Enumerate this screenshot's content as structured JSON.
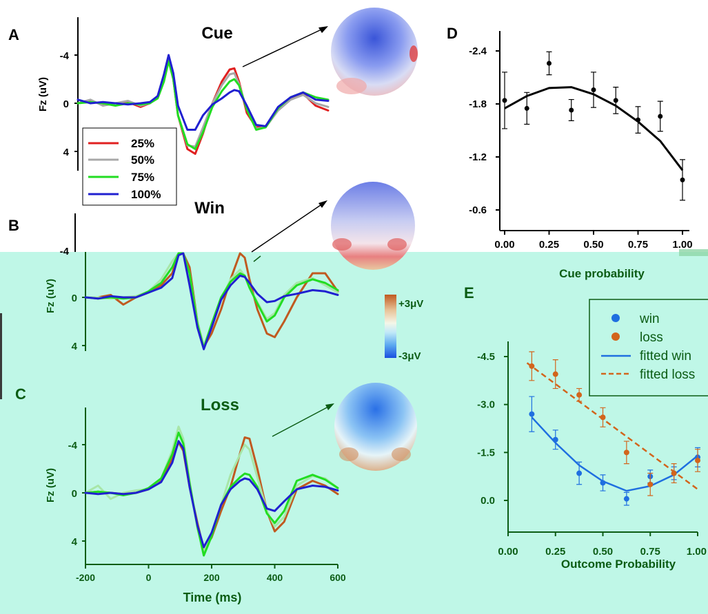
{
  "panels": {
    "A": {
      "letter": "A",
      "title": "Cue",
      "ylabel": "Fz (uV)",
      "yticks": [
        "-4",
        "0",
        "4"
      ]
    },
    "B": {
      "letter": "B",
      "title": "Win",
      "ylabel": "Fz (uV)",
      "yticks": [
        "-4",
        "0",
        "4"
      ]
    },
    "C": {
      "letter": "C",
      "title": "Loss",
      "ylabel": "Fz (uV)",
      "yticks": [
        "-4",
        "0",
        "4"
      ],
      "xticks": [
        "-200",
        "0",
        "200",
        "400",
        "600"
      ],
      "xlabel": "Time (ms)"
    },
    "D": {
      "letter": "D",
      "xlabel": "Cue probability",
      "yticks": [
        "-2.4",
        "-1.8",
        "-1.2",
        "-0.6"
      ],
      "xticks": [
        "0.00",
        "0.25",
        "0.50",
        "0.75",
        "1.00"
      ]
    },
    "E": {
      "letter": "E",
      "xlabel": "Outcome Probability",
      "yticks": [
        "-4.5",
        "-3.0",
        "-1.5",
        "0.0"
      ],
      "xticks": [
        "0.00",
        "0.25",
        "0.50",
        "0.75",
        "1.00"
      ]
    }
  },
  "legend_abc": [
    "25%",
    "50%",
    "75%",
    "100%"
  ],
  "legend_e": [
    "win",
    "loss",
    "fitted win",
    "fitted loss"
  ],
  "colorbar": {
    "top": "+3μV",
    "bottom": "-3μV"
  },
  "colors": {
    "red": "#e02020",
    "gray": "#a8a8a8",
    "green": "#22dd22",
    "blue": "#2020d0",
    "brown": "#c05a20",
    "lightgreen": "#a8e6a8",
    "bg_bottom": "#bff7e7",
    "dark_green": "#0b5c14",
    "win": "#1f6fe0",
    "loss": "#d2651c"
  },
  "chart_data": [
    {
      "type": "line",
      "panel": "A",
      "title": "Cue",
      "ylabel": "Fz (uV)",
      "xlabel": "",
      "ylim": [
        5.5,
        -6.5
      ],
      "xlim": [
        -200,
        600
      ],
      "series": [
        {
          "name": "25%",
          "color": "#e02020",
          "x": [
            -200,
            -160,
            -120,
            -80,
            -40,
            0,
            30,
            55,
            75,
            90,
            105,
            120,
            150,
            175,
            200,
            230,
            260,
            285,
            300,
            315,
            340,
            370,
            400,
            440,
            480,
            520,
            560,
            600
          ],
          "y": [
            0,
            -0.2,
            0.1,
            0,
            -0.1,
            0.3,
            0,
            -0.5,
            -2,
            -3.8,
            -2,
            1,
            3.8,
            4.2,
            2.5,
            0,
            -1.8,
            -2.8,
            -2.9,
            -1.8,
            0.8,
            2,
            1.9,
            0.5,
            -0.4,
            -0.8,
            0.2,
            0.6
          ]
        },
        {
          "name": "50%",
          "color": "#a8a8a8",
          "x": [
            -200,
            -160,
            -120,
            -80,
            -40,
            0,
            30,
            55,
            75,
            90,
            105,
            120,
            150,
            175,
            200,
            230,
            260,
            285,
            300,
            315,
            340,
            370,
            400,
            440,
            480,
            520,
            560,
            600
          ],
          "y": [
            0,
            -0.3,
            0.2,
            0,
            -0.2,
            0.2,
            0,
            -0.6,
            -2.2,
            -3.6,
            -2,
            1,
            3.5,
            3.6,
            2,
            0,
            -1.5,
            -2.4,
            -2.5,
            -1.6,
            0.5,
            2.1,
            2,
            0.6,
            -0.3,
            -0.7,
            0,
            0.3
          ]
        },
        {
          "name": "75%",
          "color": "#22dd22",
          "x": [
            -200,
            -160,
            -120,
            -80,
            -40,
            0,
            30,
            55,
            75,
            90,
            105,
            120,
            150,
            175,
            200,
            230,
            260,
            285,
            300,
            315,
            340,
            370,
            400,
            440,
            480,
            520,
            560,
            600
          ],
          "y": [
            0,
            -0.1,
            0,
            0.2,
            0,
            0.1,
            0,
            -0.4,
            -1.8,
            -3.5,
            -2,
            1,
            3.4,
            3.8,
            2.4,
            0.3,
            -1,
            -1.8,
            -2,
            -1.5,
            0.5,
            2.2,
            2,
            0.4,
            -0.5,
            -0.9,
            -0.5,
            -0.3
          ]
        },
        {
          "name": "100%",
          "color": "#2020d0",
          "x": [
            -200,
            -160,
            -120,
            -80,
            -40,
            0,
            30,
            55,
            75,
            90,
            105,
            120,
            150,
            175,
            200,
            230,
            260,
            285,
            300,
            315,
            340,
            370,
            400,
            440,
            480,
            520,
            560,
            600
          ],
          "y": [
            -0.3,
            0,
            -0.1,
            0,
            0.1,
            0,
            -0.1,
            -0.6,
            -2.4,
            -4,
            -2.5,
            0.2,
            2.2,
            2.2,
            1,
            0.1,
            -0.4,
            -0.9,
            -1.1,
            -1,
            0.2,
            1.8,
            1.9,
            0.3,
            -0.5,
            -0.9,
            -0.3,
            -0.2
          ]
        }
      ]
    },
    {
      "type": "line",
      "panel": "B",
      "title": "Win",
      "ylabel": "Fz (uV)",
      "xlabel": "",
      "ylim": [
        5.5,
        -6.5
      ],
      "xlim": [
        -200,
        600
      ],
      "series": [
        {
          "name": "brown",
          "color": "#c05a20",
          "x": [
            -200,
            -160,
            -120,
            -80,
            -40,
            0,
            40,
            75,
            95,
            110,
            130,
            155,
            175,
            200,
            230,
            260,
            290,
            305,
            320,
            345,
            375,
            400,
            430,
            470,
            520,
            560,
            600
          ],
          "y": [
            0,
            0,
            -0.2,
            0.6,
            0,
            -0.4,
            -1,
            -2,
            -4.5,
            -6,
            -2.5,
            2,
            4.1,
            3,
            1,
            -1.5,
            -3.7,
            -3.3,
            -1.5,
            1,
            3,
            3.3,
            2,
            0,
            -2,
            -2,
            -0.5
          ]
        },
        {
          "name": "lightgreen",
          "color": "#a8e6a8",
          "x": [
            -200,
            -160,
            -120,
            -80,
            -40,
            0,
            40,
            75,
            95,
            110,
            130,
            155,
            175,
            200,
            230,
            260,
            290,
            305,
            320,
            345,
            375,
            400,
            430,
            470,
            520,
            560,
            600
          ],
          "y": [
            0,
            0,
            0.1,
            0,
            -0.1,
            -0.5,
            -1.5,
            -3,
            -6,
            -5.8,
            -2,
            2,
            4,
            2.3,
            0.2,
            -1.5,
            -2.3,
            -1.8,
            -0.8,
            0.4,
            1.8,
            1.3,
            -0.2,
            -1.2,
            -1.6,
            -1,
            -0.4
          ]
        },
        {
          "name": "green",
          "color": "#22dd22",
          "x": [
            -200,
            -160,
            -120,
            -80,
            -40,
            0,
            40,
            75,
            95,
            110,
            130,
            155,
            175,
            200,
            230,
            260,
            290,
            305,
            320,
            345,
            375,
            400,
            430,
            470,
            520,
            560,
            600
          ],
          "y": [
            0,
            0.1,
            0,
            0.1,
            0,
            -0.5,
            -1.2,
            -2.5,
            -5,
            -5.5,
            -2,
            2.2,
            4.2,
            2.2,
            0,
            -1.3,
            -2,
            -1.8,
            -0.8,
            0.5,
            2,
            1.5,
            0,
            -1,
            -1.5,
            -1.2,
            -0.6
          ]
        },
        {
          "name": "blue",
          "color": "#2020d0",
          "x": [
            -200,
            -160,
            -120,
            -80,
            -40,
            0,
            40,
            75,
            95,
            110,
            130,
            155,
            175,
            200,
            230,
            260,
            290,
            305,
            320,
            345,
            375,
            400,
            430,
            470,
            520,
            560,
            600
          ],
          "y": [
            0,
            0.1,
            -0.1,
            0,
            0,
            -0.4,
            -0.8,
            -1.6,
            -3.5,
            -3.8,
            -1,
            2.5,
            4.3,
            2.5,
            0.2,
            -1,
            -1.8,
            -1.7,
            -1.2,
            -0.3,
            0.4,
            0.3,
            -0.1,
            -0.3,
            -0.6,
            -0.5,
            -0.2
          ]
        }
      ]
    },
    {
      "type": "line",
      "panel": "C",
      "title": "Loss",
      "ylabel": "Fz (uV)",
      "xlabel": "Time (ms)",
      "ylim": [
        5.5,
        -6.5
      ],
      "xlim": [
        -200,
        600
      ],
      "series": [
        {
          "name": "brown",
          "color": "#c05a20",
          "x": [
            -200,
            -160,
            -120,
            -80,
            -40,
            0,
            40,
            75,
            95,
            110,
            130,
            155,
            175,
            200,
            230,
            260,
            290,
            305,
            320,
            345,
            375,
            400,
            430,
            470,
            520,
            560,
            600
          ],
          "y": [
            0,
            -0.1,
            0,
            0.1,
            0,
            -0.3,
            -1,
            -2.8,
            -4.2,
            -3.5,
            -0.5,
            2.5,
            4.7,
            3.7,
            1.5,
            -0.5,
            -3.3,
            -4.6,
            -4.5,
            -2,
            1.5,
            3.2,
            2.4,
            -0.3,
            -1,
            -0.6,
            0.1
          ]
        },
        {
          "name": "lightgreen",
          "color": "#a8e6a8",
          "x": [
            -200,
            -160,
            -120,
            -80,
            -40,
            0,
            40,
            75,
            95,
            110,
            130,
            155,
            175,
            200,
            230,
            260,
            290,
            305,
            320,
            345,
            375,
            400,
            430,
            470,
            520,
            560,
            600
          ],
          "y": [
            0,
            -0.6,
            0.5,
            0,
            -0.2,
            -0.3,
            -1.2,
            -3.5,
            -5.5,
            -4.5,
            -1,
            3,
            4.9,
            3.5,
            1,
            -1.5,
            -3.2,
            -4,
            -3.6,
            -1.3,
            1.5,
            2.8,
            2,
            -0.6,
            -1.4,
            -1.2,
            -0.4
          ]
        },
        {
          "name": "green",
          "color": "#22dd22",
          "x": [
            -200,
            -160,
            -120,
            -80,
            -40,
            0,
            40,
            75,
            95,
            110,
            130,
            155,
            175,
            200,
            230,
            260,
            290,
            305,
            320,
            345,
            375,
            400,
            430,
            470,
            520,
            560,
            600
          ],
          "y": [
            0,
            -0.1,
            0,
            0.2,
            0,
            -0.4,
            -1.2,
            -3.2,
            -5,
            -4.1,
            -0.8,
            2.8,
            5.2,
            3.6,
            1,
            -0.5,
            -1.3,
            -1.6,
            -1.5,
            -0.5,
            1.7,
            2.5,
            1.5,
            -1,
            -1.5,
            -1.1,
            -0.4
          ]
        },
        {
          "name": "blue",
          "color": "#2020d0",
          "x": [
            -200,
            -160,
            -120,
            -80,
            -40,
            0,
            40,
            75,
            95,
            110,
            130,
            155,
            175,
            200,
            230,
            260,
            290,
            305,
            320,
            345,
            375,
            400,
            430,
            470,
            520,
            560,
            600
          ],
          "y": [
            0,
            0.1,
            0,
            0.1,
            0,
            -0.3,
            -0.9,
            -2.5,
            -4.3,
            -3.7,
            -0.5,
            2.7,
            4.5,
            3.3,
            1,
            -0.3,
            -1,
            -1.2,
            -1.1,
            -0.3,
            1.3,
            1.5,
            0.7,
            -0.3,
            -0.6,
            -0.5,
            -0.2
          ]
        }
      ]
    },
    {
      "type": "scatter",
      "panel": "D",
      "xlabel": "Cue probability",
      "ylabel": "",
      "xlim": [
        -0.03,
        1.03
      ],
      "ylim": [
        -0.35,
        -2.65
      ],
      "series": [
        {
          "name": "data",
          "color": "#000000",
          "x": [
            0,
            0.125,
            0.25,
            0.375,
            0.5,
            0.625,
            0.75,
            0.875,
            1.0
          ],
          "y": [
            -1.84,
            -1.75,
            -2.26,
            -1.73,
            -1.96,
            -1.84,
            -1.62,
            -1.66,
            -0.94
          ],
          "err": [
            0.32,
            0.18,
            0.13,
            0.12,
            0.2,
            0.15,
            0.15,
            0.17,
            0.23
          ]
        },
        {
          "name": "fit",
          "color": "#000000",
          "x": [
            0,
            0.125,
            0.25,
            0.375,
            0.5,
            0.625,
            0.75,
            0.875,
            1.0
          ],
          "y": [
            -1.75,
            -1.89,
            -1.98,
            -1.99,
            -1.91,
            -1.78,
            -1.6,
            -1.38,
            -1.05
          ]
        }
      ]
    },
    {
      "type": "scatter",
      "panel": "E",
      "xlabel": "Outcome Probability",
      "ylabel": "",
      "xlim": [
        -0.03,
        1.03
      ],
      "ylim": [
        1.85,
        -5.2
      ],
      "series": [
        {
          "name": "win",
          "color": "#1f6fe0",
          "x": [
            0.125,
            0.25,
            0.375,
            0.5,
            0.625,
            0.75,
            0.875,
            1.0
          ],
          "y": [
            -2.7,
            -1.9,
            -0.85,
            -0.55,
            -0.05,
            -0.75,
            -0.85,
            -1.35
          ],
          "err": [
            0.55,
            0.3,
            0.35,
            0.25,
            0.2,
            0.2,
            0.2,
            0.3
          ]
        },
        {
          "name": "loss",
          "color": "#d2651c",
          "x": [
            0.125,
            0.25,
            0.375,
            0.5,
            0.625,
            0.75,
            0.875,
            1.0
          ],
          "y": [
            -4.2,
            -3.95,
            -3.3,
            -2.6,
            -1.5,
            -0.5,
            -0.85,
            -1.25
          ],
          "err": [
            0.45,
            0.45,
            0.2,
            0.3,
            0.35,
            0.35,
            0.3,
            0.35
          ]
        },
        {
          "name": "fitted win",
          "color": "#1f6fe0",
          "x": [
            0.125,
            0.25,
            0.375,
            0.5,
            0.625,
            0.75,
            0.875,
            1.0
          ],
          "y": [
            -2.6,
            -1.8,
            -1.1,
            -0.6,
            -0.3,
            -0.45,
            -0.8,
            -1.4
          ]
        },
        {
          "name": "fitted loss",
          "color": "#d2651c",
          "x": [
            0.1,
            1.0
          ],
          "y": [
            -4.3,
            -0.35
          ]
        }
      ]
    }
  ]
}
